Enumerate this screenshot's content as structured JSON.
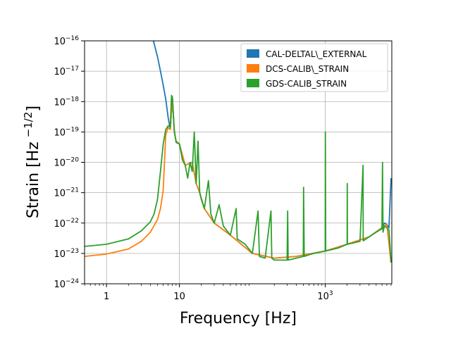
{
  "chart_data": {
    "type": "line",
    "xlabel": "Frequency [Hz]",
    "ylabel_main": "Strain [Hz",
    "ylabel_exp": "−1/2",
    "ylabel_close": "]",
    "xscale": "log",
    "yscale": "log",
    "xlim": [
      0.5,
      8192
    ],
    "ylim": [
      1e-24,
      1e-16
    ],
    "grid": true,
    "legend_position": "top-right",
    "x_ticks": [
      {
        "value": 1,
        "label": "1"
      },
      {
        "value": 10,
        "label": "10"
      },
      {
        "value": 1000,
        "label_base": "10",
        "label_exp": "3"
      }
    ],
    "y_ticks": [
      {
        "value": 1e-24,
        "label_base": "10",
        "label_exp": "−24"
      },
      {
        "value": 1e-23,
        "label_base": "10",
        "label_exp": "−23"
      },
      {
        "value": 1e-22,
        "label_base": "10",
        "label_exp": "−22"
      },
      {
        "value": 1e-21,
        "label_base": "10",
        "label_exp": "−21"
      },
      {
        "value": 1e-20,
        "label_base": "10",
        "label_exp": "−20"
      },
      {
        "value": 1e-19,
        "label_base": "10",
        "label_exp": "−19"
      },
      {
        "value": 1e-18,
        "label_base": "10",
        "label_exp": "−18"
      },
      {
        "value": 1e-17,
        "label_base": "10",
        "label_exp": "−17"
      },
      {
        "value": 1e-16,
        "label_base": "10",
        "label_exp": "−16"
      }
    ],
    "series": [
      {
        "name": "CAL-DELTAL\\_EXTERNAL",
        "color": "#1f77b4",
        "points": [
          [
            4.4,
            1e-16
          ],
          [
            5,
            3e-17
          ],
          [
            5.5,
            1e-17
          ],
          [
            6,
            3.5e-18
          ],
          [
            6.5,
            1.2e-18
          ],
          [
            7,
            3e-19
          ],
          [
            7.5,
            1.2e-19
          ],
          [
            8,
            1.4e-18
          ],
          [
            8.5,
            1e-19
          ],
          [
            9,
            5e-20
          ],
          [
            10,
            4e-20
          ],
          [
            12,
            8e-21
          ],
          [
            15,
            1e-20
          ],
          [
            17,
            2e-21
          ],
          [
            19,
            1e-21
          ],
          [
            22,
            3e-22
          ],
          [
            30,
            1e-22
          ],
          [
            50,
            4e-23
          ],
          [
            100,
            1e-23
          ],
          [
            200,
            7e-24
          ],
          [
            400,
            8e-24
          ],
          [
            1000,
            1.2e-23
          ],
          [
            2000,
            2e-23
          ],
          [
            4000,
            3.5e-23
          ],
          [
            6000,
            7e-23
          ],
          [
            6500,
            1e-22
          ],
          [
            7000,
            9e-23
          ],
          [
            7500,
            7e-23
          ],
          [
            8000,
            3e-21
          ]
        ]
      },
      {
        "name": "DCS-CALIB\\_STRAIN",
        "color": "#ff7f0e",
        "points": [
          [
            0.5,
            8e-24
          ],
          [
            1,
            9.5e-24
          ],
          [
            2,
            1.4e-23
          ],
          [
            3,
            2.5e-23
          ],
          [
            4,
            5e-23
          ],
          [
            5,
            1.3e-22
          ],
          [
            5.5,
            3e-22
          ],
          [
            6,
            1.2e-21
          ],
          [
            6.5,
            8e-20
          ],
          [
            7,
            1.4e-19
          ],
          [
            7.5,
            1.2e-19
          ],
          [
            8,
            1.4e-18
          ],
          [
            8.5,
            1e-19
          ],
          [
            9,
            5e-20
          ],
          [
            10,
            4e-20
          ],
          [
            12,
            8e-21
          ],
          [
            15,
            1e-20
          ],
          [
            17,
            2e-21
          ],
          [
            19,
            1e-21
          ],
          [
            22,
            3e-22
          ],
          [
            30,
            1e-22
          ],
          [
            50,
            4e-23
          ],
          [
            100,
            1e-23
          ],
          [
            200,
            7e-24
          ],
          [
            400,
            8e-24
          ],
          [
            1000,
            1.2e-23
          ],
          [
            2000,
            2e-23
          ],
          [
            4000,
            3.5e-23
          ],
          [
            6000,
            7e-23
          ],
          [
            7000,
            9e-23
          ],
          [
            8000,
            5e-24
          ]
        ]
      },
      {
        "name": "GDS-CALIB_STRAIN",
        "color": "#2ca02c",
        "points": [
          [
            0.5,
            1.7e-23
          ],
          [
            1,
            2e-23
          ],
          [
            2,
            3e-23
          ],
          [
            3,
            5.5e-23
          ],
          [
            4,
            1.1e-22
          ],
          [
            4.5,
            2e-22
          ],
          [
            5,
            6e-22
          ],
          [
            5.5,
            5e-21
          ],
          [
            6,
            4e-20
          ],
          [
            6.5,
            1.2e-19
          ],
          [
            7,
            1.6e-19
          ],
          [
            7.5,
            1.5e-19
          ],
          [
            7.8,
            1.6e-18
          ],
          [
            8,
            1.4e-18
          ],
          [
            8.5,
            1.2e-19
          ],
          [
            9,
            4.5e-20
          ],
          [
            10,
            4e-20
          ],
          [
            11,
            1.2e-20
          ],
          [
            12,
            8e-21
          ],
          [
            13,
            3e-21
          ],
          [
            14,
            1e-20
          ],
          [
            15,
            5e-21
          ],
          [
            16,
            1e-19
          ],
          [
            17,
            2e-21
          ],
          [
            18,
            5e-20
          ],
          [
            19,
            1e-21
          ],
          [
            20,
            6e-22
          ],
          [
            22,
            3e-22
          ],
          [
            25,
            2.5e-21
          ],
          [
            27,
            2e-22
          ],
          [
            30,
            1e-22
          ],
          [
            35,
            4e-22
          ],
          [
            40,
            8e-23
          ],
          [
            50,
            4e-23
          ],
          [
            60,
            3e-22
          ],
          [
            62,
            3e-23
          ],
          [
            80,
            2e-23
          ],
          [
            100,
            1e-23
          ],
          [
            120,
            2.5e-22
          ],
          [
            125,
            8e-24
          ],
          [
            150,
            7e-24
          ],
          [
            180,
            2.5e-22
          ],
          [
            185,
            7e-24
          ],
          [
            200,
            6e-24
          ],
          [
            300,
            6e-24
          ],
          [
            305,
            2.5e-22
          ],
          [
            310,
            6e-24
          ],
          [
            400,
            7e-24
          ],
          [
            500,
            8e-24
          ],
          [
            505,
            1.5e-21
          ],
          [
            515,
            8e-24
          ],
          [
            600,
            9e-24
          ],
          [
            700,
            1e-23
          ],
          [
            1000,
            1.2e-23
          ],
          [
            1005,
            1e-19
          ],
          [
            1015,
            1.2e-23
          ],
          [
            1500,
            1.5e-23
          ],
          [
            2000,
            2e-23
          ],
          [
            2005,
            2e-21
          ],
          [
            2015,
            2e-23
          ],
          [
            3000,
            2.5e-23
          ],
          [
            3305,
            8e-21
          ],
          [
            3315,
            2.6e-23
          ],
          [
            4000,
            3.5e-23
          ],
          [
            5000,
            5e-23
          ],
          [
            6000,
            6.5e-23
          ],
          [
            6100,
            1e-20
          ],
          [
            6200,
            5e-23
          ],
          [
            6500,
            8e-23
          ],
          [
            7000,
            7e-23
          ],
          [
            7500,
            6e-23
          ],
          [
            8000,
            5e-24
          ]
        ]
      }
    ]
  }
}
